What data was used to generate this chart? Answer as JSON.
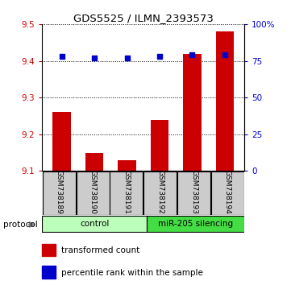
{
  "title": "GDS5525 / ILMN_2393573",
  "samples": [
    "GSM738189",
    "GSM738190",
    "GSM738191",
    "GSM738192",
    "GSM738193",
    "GSM738194"
  ],
  "red_values": [
    9.26,
    9.15,
    9.13,
    9.24,
    9.42,
    9.48
  ],
  "blue_values": [
    78,
    77,
    77,
    78,
    79,
    79
  ],
  "ylim_left": [
    9.1,
    9.5
  ],
  "ylim_right": [
    0,
    100
  ],
  "yticks_left": [
    9.1,
    9.2,
    9.3,
    9.4,
    9.5
  ],
  "yticks_right": [
    0,
    25,
    50,
    75,
    100
  ],
  "ytick_labels_right": [
    "0",
    "25",
    "50",
    "75",
    "100%"
  ],
  "bar_bottom": 9.1,
  "bar_color": "#cc0000",
  "dot_color": "#0000cc",
  "group1_label": "control",
  "group2_label": "miR-205 silencing",
  "group1_color": "#bbffbb",
  "group2_color": "#44dd44",
  "protocol_label": "protocol",
  "legend1": "transformed count",
  "legend2": "percentile rank within the sample",
  "tick_color_left": "#cc0000",
  "tick_color_right": "#0000cc",
  "sample_box_color": "#cccccc"
}
